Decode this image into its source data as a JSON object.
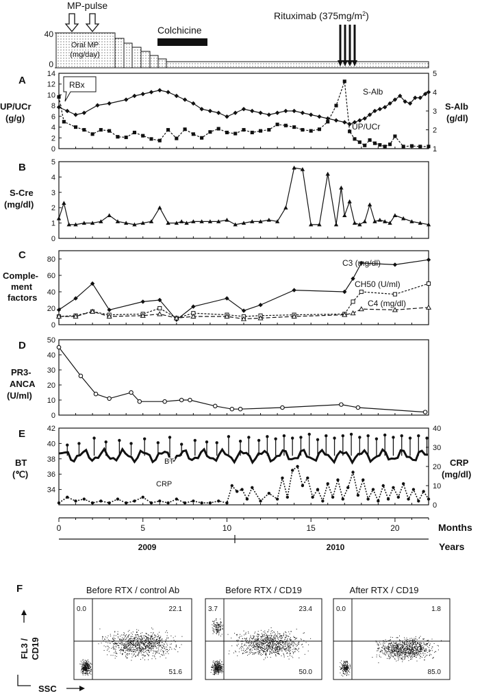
{
  "chart_data": [
    {
      "type": "timeline",
      "panel": "treatment",
      "labels": {
        "mp_pulse": "MP-pulse",
        "oral_mp_1": "Oral MP",
        "oral_mp_2": "(mg/day)",
        "colchicine": "Colchicine",
        "rituximab": "Rituximab (375mg/m",
        "rituximab_sup": "2",
        "rituximab_end": ")",
        "y_tick_top": "40",
        "y_tick_bottom": "0"
      }
    },
    {
      "type": "line",
      "panel": "A",
      "panel_label": "A",
      "ylabel_left": "UP/UCr",
      "ylabel_left_unit": "(g/g)",
      "ylabel_right": "S-Alb",
      "ylabel_right_unit": "(g/dl)",
      "left_ticks": [
        "0",
        "2",
        "4",
        "6",
        "8",
        "10",
        "12",
        "14"
      ],
      "right_ticks": [
        "1",
        "2",
        "3",
        "4",
        "5"
      ],
      "annotation": "RBx",
      "series": [
        {
          "name": "S-Alb",
          "axis": "right",
          "marker": "diamond",
          "x": [
            0,
            0.5,
            1.0,
            1.5,
            2.3,
            3.0,
            4.0,
            4.5,
            5.0,
            5.5,
            6.0,
            6.5,
            7.0,
            7.5,
            8.0,
            8.5,
            9.0,
            9.5,
            10.0,
            10.5,
            11.0,
            11.5,
            12.0,
            12.5,
            13.0,
            13.5,
            14.0,
            14.5,
            15.0,
            15.5,
            16.0,
            16.5,
            17.0,
            17.3,
            17.6,
            17.9,
            18.2,
            18.5,
            18.8,
            19.1,
            19.4,
            19.7,
            20.0,
            20.3,
            20.6,
            20.9,
            21.2,
            21.5,
            21.8,
            22.0
          ],
          "y": [
            3.2,
            3.0,
            2.8,
            2.9,
            3.3,
            3.4,
            3.6,
            3.8,
            3.9,
            4.0,
            4.1,
            4.0,
            3.8,
            3.6,
            3.4,
            3.1,
            3.0,
            2.9,
            2.7,
            2.9,
            3.1,
            3.0,
            2.9,
            2.8,
            2.9,
            3.0,
            3.0,
            2.9,
            2.8,
            2.7,
            2.6,
            2.5,
            2.4,
            2.3,
            2.4,
            2.5,
            2.6,
            2.8,
            3.0,
            3.1,
            3.2,
            3.4,
            3.6,
            3.8,
            3.5,
            3.4,
            3.7,
            3.7,
            3.9,
            4.0
          ]
        },
        {
          "name": "UP/UCr",
          "axis": "left",
          "marker": "square",
          "x": [
            0,
            0.3,
            1.0,
            1.5,
            2.0,
            2.5,
            3.0,
            3.5,
            4.0,
            4.5,
            5.0,
            5.5,
            6.0,
            6.5,
            7.0,
            7.5,
            8.0,
            8.5,
            9.0,
            9.5,
            10.0,
            10.5,
            11.0,
            11.5,
            12.0,
            12.5,
            13.0,
            13.5,
            14.0,
            14.5,
            15.0,
            15.5,
            16.0,
            16.5,
            17.0,
            17.3,
            17.6,
            17.9,
            18.2,
            18.5,
            18.8,
            19.1,
            19.4,
            19.7,
            20.0,
            20.5,
            21.0,
            21.5,
            22.0
          ],
          "y": [
            9.6,
            5.0,
            4.0,
            3.5,
            2.7,
            3.5,
            3.3,
            2.2,
            2.1,
            3.0,
            2.4,
            1.8,
            1.5,
            3.5,
            1.9,
            3.6,
            2.7,
            2.0,
            3.1,
            3.7,
            3.0,
            2.8,
            3.5,
            3.0,
            3.3,
            3.5,
            4.5,
            4.3,
            4.0,
            3.5,
            3.3,
            3.6,
            5.0,
            8.0,
            12.5,
            3.2,
            1.8,
            1.2,
            0.6,
            1.6,
            1.0,
            0.7,
            0.4,
            0.8,
            2.3,
            0.4,
            0.5,
            0.4,
            0.4
          ]
        }
      ]
    },
    {
      "type": "line",
      "panel": "B",
      "panel_label": "B",
      "ylabel": "S-Cre",
      "ylabel_unit": "(mg/dl)",
      "ticks": [
        "0",
        "1",
        "2",
        "3",
        "4",
        "5"
      ],
      "series": [
        {
          "name": "S-Cre",
          "marker": "triangle",
          "x": [
            0,
            0.3,
            0.6,
            1.0,
            1.5,
            2.0,
            2.5,
            3.0,
            3.5,
            4.0,
            4.5,
            5.0,
            5.5,
            6.0,
            6.5,
            7.0,
            7.3,
            7.6,
            8.0,
            8.5,
            9.0,
            9.5,
            10.0,
            10.5,
            11.0,
            11.5,
            12.0,
            12.5,
            13.0,
            13.5,
            14.0,
            14.5,
            15.0,
            15.5,
            16.0,
            16.5,
            16.8,
            17.0,
            17.3,
            17.6,
            17.9,
            18.2,
            18.5,
            18.8,
            19.1,
            19.4,
            19.7,
            20.0,
            20.5,
            21.0,
            21.5,
            22.0
          ],
          "y": [
            1.3,
            2.3,
            0.9,
            0.9,
            1.0,
            1.0,
            1.1,
            1.5,
            1.1,
            1.0,
            0.9,
            1.0,
            1.1,
            2.0,
            1.0,
            1.0,
            1.1,
            1.0,
            1.1,
            1.1,
            1.1,
            1.1,
            1.2,
            0.9,
            1.0,
            1.1,
            1.1,
            1.2,
            1.1,
            2.0,
            4.6,
            4.5,
            0.9,
            0.9,
            4.2,
            0.9,
            3.3,
            1.5,
            2.4,
            1.0,
            0.9,
            1.1,
            2.2,
            1.1,
            1.2,
            1.1,
            1.0,
            1.5,
            1.3,
            1.1,
            1.0,
            0.9
          ]
        }
      ]
    },
    {
      "type": "line",
      "panel": "C",
      "panel_label": "C",
      "ylabel_1": "Comple-",
      "ylabel_2": "ment",
      "ylabel_3": "factors",
      "ticks": [
        "0",
        "20",
        "40",
        "60",
        "80"
      ],
      "series": [
        {
          "name": "C3 (mg/dl)",
          "marker": "diamond",
          "x": [
            0,
            1,
            2,
            3,
            5,
            6,
            7,
            8,
            10,
            11,
            12,
            14,
            17,
            17.5,
            18,
            20,
            22
          ],
          "y": [
            18,
            32,
            50,
            18,
            28,
            30,
            6,
            22,
            32,
            17,
            24,
            42,
            40,
            56,
            75,
            73,
            79
          ]
        },
        {
          "name": "CH50 (U/ml)",
          "marker": "open-square",
          "x": [
            0,
            1,
            2,
            3,
            5,
            6,
            7,
            8,
            10,
            11,
            12,
            14,
            17,
            17.5,
            18,
            20,
            22
          ],
          "y": [
            10,
            11,
            16,
            12,
            13,
            20,
            8,
            14,
            12,
            10,
            11,
            12,
            13,
            28,
            40,
            37,
            50
          ]
        },
        {
          "name": "C4 (mg/dl)",
          "marker": "open-triangle",
          "x": [
            0,
            1,
            2,
            3,
            5,
            6,
            7,
            8,
            10,
            11,
            12,
            14,
            17,
            17.5,
            18,
            20,
            22
          ],
          "y": [
            10,
            10,
            16,
            10,
            11,
            13,
            8,
            10,
            10,
            7,
            8,
            10,
            12,
            14,
            19,
            18,
            21
          ]
        }
      ]
    },
    {
      "type": "line",
      "panel": "D",
      "panel_label": "D",
      "ylabel_1": "PR3-",
      "ylabel_2": "ANCA",
      "ylabel_3": "(U/ml)",
      "ticks": [
        "0",
        "10",
        "20",
        "30",
        "40",
        "50"
      ],
      "series": [
        {
          "name": "PR3-ANCA",
          "marker": "open-circle",
          "x": [
            0,
            1.3,
            2.2,
            3.0,
            4.3,
            4.8,
            6.3,
            7.3,
            7.8,
            9.3,
            10.3,
            10.8,
            13.3,
            16.8,
            17.8,
            21.8
          ],
          "y": [
            45,
            26,
            14,
            11,
            15,
            9,
            9,
            10,
            10,
            6,
            4,
            4,
            5,
            7,
            5,
            2
          ]
        }
      ]
    },
    {
      "type": "line",
      "panel": "E",
      "panel_label": "E",
      "ylabel_left": "BT",
      "ylabel_left_unit": "(℃)",
      "ylabel_right": "CRP",
      "ylabel_right_unit": "(mg/dl)",
      "left_ticks": [
        "34",
        "36",
        "38",
        "40",
        "42"
      ],
      "right_ticks": [
        "0",
        "10",
        "20",
        "30",
        "40"
      ],
      "series_labels": {
        "bt": "BT",
        "crp": "CRP"
      },
      "series": [
        {
          "name": "BT",
          "axis": "left",
          "baseline": 38.4,
          "spikes_x": [
            0.5,
            1.2,
            2.1,
            2.8,
            3.6,
            4.3,
            5.1,
            5.9,
            6.6,
            7.3,
            8.1,
            8.8,
            9.4,
            10.1,
            10.8,
            11.3,
            11.9,
            12.4,
            12.9,
            13.4,
            13.9,
            14.4,
            14.9,
            15.4,
            15.9,
            16.4,
            16.9,
            17.4,
            17.9,
            18.4,
            18.9,
            19.4,
            19.9,
            20.4,
            20.9,
            21.4,
            21.9
          ],
          "spikes_y": [
            39.8,
            40.0,
            40.7,
            40.2,
            40.4,
            40.0,
            40.6,
            40.1,
            40.8,
            39.9,
            40.4,
            40.2,
            40.1,
            40.9,
            40.3,
            40.8,
            40.4,
            40.9,
            40.6,
            41.0,
            40.7,
            40.8,
            41.2,
            40.5,
            41.0,
            40.7,
            41.0,
            41.2,
            40.8,
            41.0,
            40.6,
            41.1,
            40.8,
            41.0,
            40.7,
            41.0,
            40.7
          ]
        },
        {
          "name": "CRP",
          "axis": "right",
          "x": [
            0,
            0.5,
            1,
            1.5,
            2,
            2.5,
            3,
            3.5,
            4,
            4.5,
            5,
            5.5,
            6,
            6.5,
            7,
            7.5,
            8,
            8.5,
            9,
            9.5,
            10,
            10.3,
            10.6,
            10.9,
            11.2,
            11.5,
            12,
            12.5,
            13,
            13.3,
            13.6,
            13.9,
            14.2,
            14.5,
            14.8,
            15.1,
            15.4,
            15.7,
            16,
            16.3,
            16.6,
            16.9,
            17.2,
            17.5,
            17.8,
            18.1,
            18.4,
            18.7,
            19,
            19.3,
            19.6,
            19.9,
            20.2,
            20.5,
            20.8,
            21.1,
            21.4,
            21.7,
            22
          ],
          "y": [
            1,
            4,
            2,
            3,
            1,
            2,
            1,
            3,
            1,
            2,
            4,
            1,
            2,
            1,
            3,
            1,
            2,
            1,
            1,
            2,
            1,
            10,
            7,
            8,
            3,
            9,
            2,
            6,
            3,
            14,
            4,
            18,
            20,
            10,
            14,
            4,
            8,
            2,
            11,
            4,
            13,
            3,
            9,
            17,
            5,
            13,
            3,
            8,
            2,
            10,
            3,
            9,
            4,
            11,
            3,
            8,
            2,
            7,
            3
          ]
        }
      ]
    },
    {
      "type": "axis",
      "panel": "timeline-axis",
      "month_ticks": [
        "0",
        "5",
        "10",
        "15",
        "20"
      ],
      "months_label": "Months",
      "years": [
        "2009",
        "2010"
      ],
      "years_label": "Years"
    },
    {
      "type": "scatter",
      "panel": "F",
      "panel_label": "F",
      "axis_y_1": "FL3 /",
      "axis_y_2": "CD19",
      "axis_x": "SSC",
      "plots": [
        {
          "title": "Before RTX / control Ab",
          "ul": "0.0",
          "ur": "22.1",
          "lr": "51.6"
        },
        {
          "title": "Before RTX / CD19",
          "ul": "3.7",
          "ur": "23.4",
          "lr": "50.0"
        },
        {
          "title": "After RTX / CD19",
          "ul": "0.0",
          "ur": "1.8",
          "lr": "85.0"
        }
      ]
    }
  ]
}
